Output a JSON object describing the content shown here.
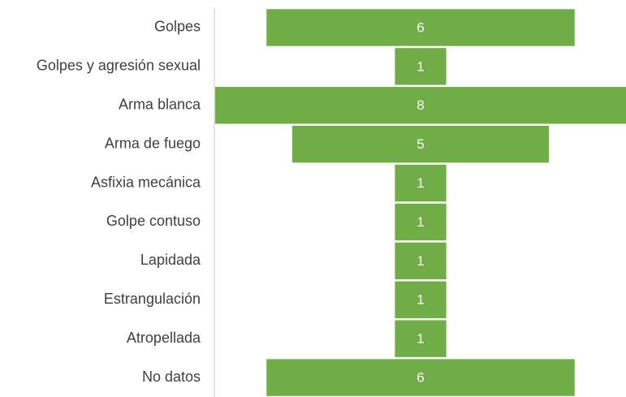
{
  "chart_data": {
    "type": "funnel",
    "categories": [
      "Golpes",
      "Golpes y agresión sexual",
      "Arma blanca",
      "Arma de fuego",
      "Asfixia mecánica",
      "Golpe contuso",
      "Lapidada",
      "Estrangulación",
      "Atropellada",
      "No datos"
    ],
    "values": [
      6,
      1,
      8,
      5,
      1,
      1,
      1,
      1,
      1,
      6
    ],
    "color": "#70ad47"
  }
}
